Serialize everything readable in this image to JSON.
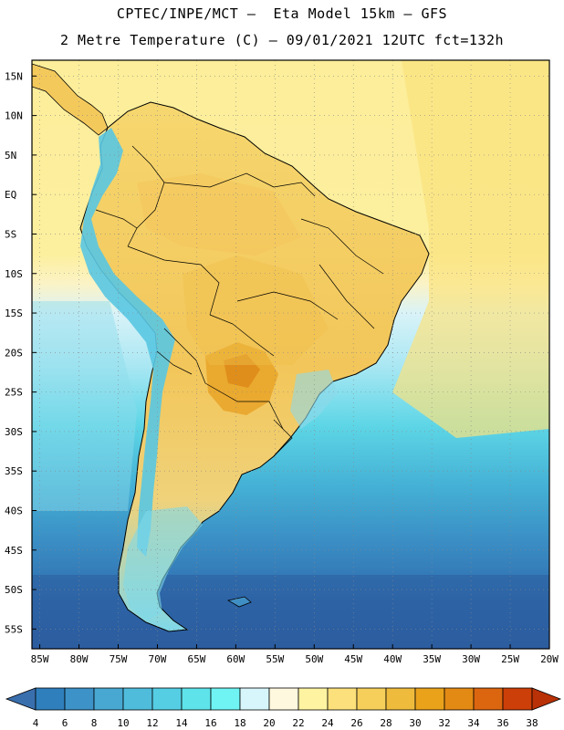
{
  "title_line1": "CPTEC/INPE/MCT –  Eta Model 15km – GFS",
  "title_line2": "2 Metre Temperature (C) – 09/01/2021 12UTC fct=132h",
  "lat_labels": [
    "15N",
    "10N",
    "5N",
    "EQ",
    "5S",
    "10S",
    "15S",
    "20S",
    "25S",
    "30S",
    "35S",
    "40S",
    "45S",
    "50S",
    "55S"
  ],
  "lon_labels": [
    "85W",
    "80W",
    "75W",
    "70W",
    "65W",
    "60W",
    "55W",
    "50W",
    "45W",
    "40W",
    "35W",
    "30W",
    "25W",
    "20W"
  ],
  "colorbar": {
    "levels": [
      "4",
      "6",
      "8",
      "10",
      "12",
      "14",
      "16",
      "18",
      "20",
      "22",
      "24",
      "26",
      "28",
      "30",
      "32",
      "34",
      "36",
      "38"
    ],
    "colors": [
      "#3a6fae",
      "#2f7fbd",
      "#3d93c8",
      "#48a8d2",
      "#4fbcdc",
      "#55cee4",
      "#5ee3ea",
      "#6ff3f3",
      "#d6f6fb",
      "#fdf8de",
      "#fef3a0",
      "#fbe07b",
      "#f5cf5a",
      "#eebb3c",
      "#e9a21a",
      "#e38a15",
      "#dc6510",
      "#cc3f08",
      "#b93106"
    ]
  },
  "colors": {
    "ocean_warm": "#fcef9c",
    "ocean_mid": "#fef7d6",
    "ocean_cold": "#2f62a4",
    "land": "#f7d36c",
    "land_hot": "#e9a21a",
    "andes": "#5ec4e0"
  }
}
